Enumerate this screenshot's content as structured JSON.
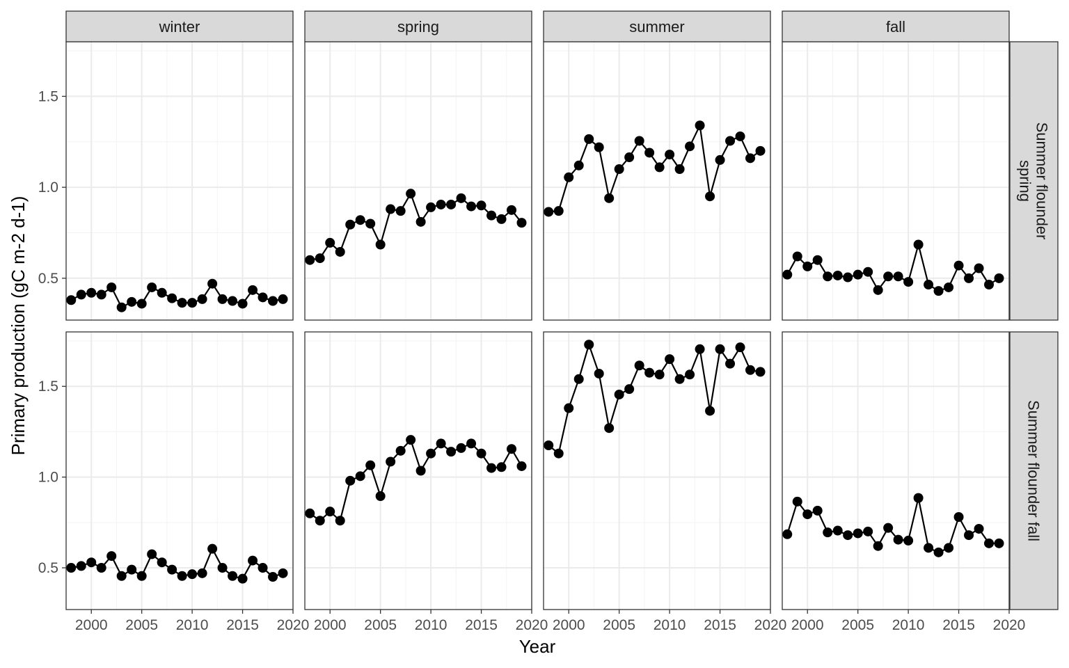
{
  "chart_data": {
    "type": "line",
    "xlabel": "Year",
    "ylabel": "Primary production (gC m-2 d-1)",
    "xlim": [
      1997.5,
      2020
    ],
    "ylim": [
      0.27,
      1.8
    ],
    "x_ticks": [
      2000,
      2005,
      2010,
      2015,
      2020
    ],
    "x_tick_labels": [
      "2000",
      "2005",
      "2010",
      "2015",
      "2020"
    ],
    "y_ticks": [
      0.5,
      1.0,
      1.5
    ],
    "y_tick_labels": [
      "0.5",
      "1.0",
      "1.5"
    ],
    "grid": true,
    "columns": [
      "winter",
      "spring",
      "summer",
      "fall"
    ],
    "rows": [
      "Summer flounder spring",
      "Summer flounder fall"
    ],
    "row_strip_lines": [
      [
        "Summer flounder",
        "spring"
      ],
      [
        "Summer flounder fall"
      ]
    ],
    "x": [
      1998,
      1999,
      2000,
      2001,
      2002,
      2003,
      2004,
      2005,
      2006,
      2007,
      2008,
      2009,
      2010,
      2011,
      2012,
      2013,
      2014,
      2015,
      2016,
      2017,
      2018,
      2019
    ],
    "panels": [
      {
        "row": "Summer flounder spring",
        "column": "winter",
        "values": [
          0.38,
          0.41,
          0.42,
          0.41,
          0.45,
          0.34,
          0.37,
          0.36,
          0.45,
          0.42,
          0.39,
          0.365,
          0.365,
          0.385,
          0.47,
          0.385,
          0.375,
          0.36,
          0.435,
          0.395,
          0.375,
          0.385
        ]
      },
      {
        "row": "Summer flounder spring",
        "column": "spring",
        "values": [
          0.6,
          0.61,
          0.695,
          0.645,
          0.795,
          0.82,
          0.8,
          0.685,
          0.88,
          0.87,
          0.965,
          0.81,
          0.89,
          0.905,
          0.905,
          0.94,
          0.895,
          0.9,
          0.845,
          0.825,
          0.875,
          0.805
        ]
      },
      {
        "row": "Summer flounder spring",
        "column": "summer",
        "values": [
          0.865,
          0.87,
          1.055,
          1.12,
          1.265,
          1.22,
          0.94,
          1.1,
          1.165,
          1.255,
          1.19,
          1.11,
          1.18,
          1.1,
          1.225,
          1.34,
          0.95,
          1.15,
          1.255,
          1.28,
          1.16,
          1.2
        ]
      },
      {
        "row": "Summer flounder spring",
        "column": "fall",
        "values": [
          0.52,
          0.62,
          0.565,
          0.6,
          0.51,
          0.515,
          0.505,
          0.52,
          0.535,
          0.435,
          0.51,
          0.51,
          0.48,
          0.685,
          0.465,
          0.43,
          0.45,
          0.57,
          0.5,
          0.555,
          0.465,
          0.5
        ]
      },
      {
        "row": "Summer flounder fall",
        "column": "winter",
        "values": [
          0.5,
          0.51,
          0.53,
          0.5,
          0.565,
          0.455,
          0.49,
          0.455,
          0.575,
          0.53,
          0.49,
          0.455,
          0.465,
          0.47,
          0.605,
          0.5,
          0.455,
          0.44,
          0.54,
          0.5,
          0.45,
          0.47
        ]
      },
      {
        "row": "Summer flounder fall",
        "column": "spring",
        "values": [
          0.8,
          0.76,
          0.81,
          0.76,
          0.98,
          1.005,
          1.065,
          0.895,
          1.085,
          1.145,
          1.205,
          1.035,
          1.13,
          1.185,
          1.14,
          1.16,
          1.185,
          1.13,
          1.05,
          1.055,
          1.155,
          1.06
        ]
      },
      {
        "row": "Summer flounder fall",
        "column": "summer",
        "values": [
          1.175,
          1.13,
          1.38,
          1.54,
          1.73,
          1.57,
          1.27,
          1.455,
          1.485,
          1.615,
          1.575,
          1.565,
          1.65,
          1.54,
          1.565,
          1.705,
          1.365,
          1.705,
          1.625,
          1.715,
          1.59,
          1.58
        ]
      },
      {
        "row": "Summer flounder fall",
        "column": "fall",
        "values": [
          0.685,
          0.865,
          0.795,
          0.815,
          0.695,
          0.705,
          0.68,
          0.69,
          0.7,
          0.62,
          0.72,
          0.655,
          0.65,
          0.885,
          0.61,
          0.585,
          0.61,
          0.78,
          0.68,
          0.715,
          0.635,
          0.635
        ]
      }
    ]
  }
}
